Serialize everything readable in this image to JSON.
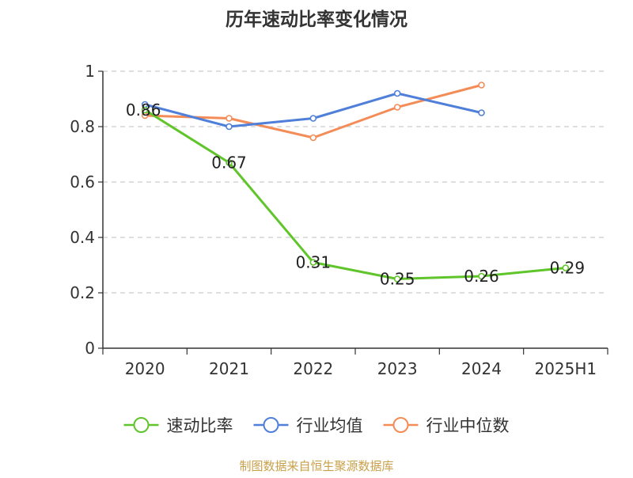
{
  "chart_data": {
    "type": "line",
    "title": "历年速动比率变化情况",
    "categories": [
      "2020",
      "2021",
      "2022",
      "2023",
      "2024",
      "2025H1"
    ],
    "ylim": [
      0,
      1
    ],
    "yticks": [
      0,
      0.2,
      0.4,
      0.6,
      0.8,
      1
    ],
    "ytick_labels": [
      "0",
      "0.2",
      "0.4",
      "0.6",
      "0.8",
      "1"
    ],
    "grid": true,
    "legend_position": "bottom",
    "series": [
      {
        "name": "速动比率",
        "color": "#5fc52a",
        "values": [
          0.86,
          0.67,
          0.31,
          0.25,
          0.26,
          0.29
        ],
        "labels": [
          "0.86",
          "0.67",
          "0.31",
          "0.25",
          "0.26",
          "0.29"
        ]
      },
      {
        "name": "行业均值",
        "color": "#4f7fd8",
        "values": [
          0.88,
          0.8,
          0.83,
          0.92,
          0.85,
          null
        ]
      },
      {
        "name": "行业中位数",
        "color": "#f48c57",
        "values": [
          0.84,
          0.83,
          0.76,
          0.87,
          0.95,
          null
        ]
      }
    ],
    "source": "制图数据来自恒生聚源数据库",
    "source_color": "#c8a04a"
  }
}
